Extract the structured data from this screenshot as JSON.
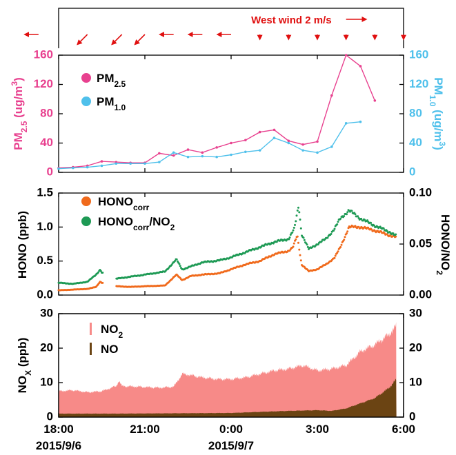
{
  "colors": {
    "pm25": "#e8418f",
    "pm10": "#4fc0eb",
    "hono": "#f06a1c",
    "ratio": "#1e9a55",
    "no2": "#f78a88",
    "no": "#6b4413",
    "wind": "#e01010",
    "axis": "#000000"
  },
  "x_ticks": [
    {
      "hour": 0,
      "time": "18:00",
      "date": "2015/9/6"
    },
    {
      "hour": 3,
      "time": "21:00",
      "date": ""
    },
    {
      "hour": 6,
      "time": "0:00",
      "date": "2015/9/7"
    },
    {
      "hour": 9,
      "time": "3:00",
      "date": ""
    },
    {
      "hour": 12,
      "time": "6:00",
      "date": ""
    }
  ],
  "chart_data": [
    {
      "type": "quiver",
      "panel": "wind",
      "annotation": {
        "text": "West wind 2 m/s",
        "reference_direction": "east"
      },
      "x_unit": "hours after 2015/9/6 18:00",
      "arrows": [
        {
          "x": -0.7,
          "direction": "west"
        },
        {
          "x": 1.0,
          "direction": "southwest"
        },
        {
          "x": 2.2,
          "direction": "southwest"
        },
        {
          "x": 3.0,
          "direction": "southwest"
        },
        {
          "x": 4.0,
          "direction": "west"
        },
        {
          "x": 5.0,
          "direction": "west"
        },
        {
          "x": 6.0,
          "direction": "west"
        },
        {
          "x": 7.0,
          "direction": "south"
        },
        {
          "x": 8.0,
          "direction": "south"
        },
        {
          "x": 9.0,
          "direction": "south"
        },
        {
          "x": 10.0,
          "direction": "south"
        },
        {
          "x": 11.0,
          "direction": "south"
        },
        {
          "x": 12.0,
          "direction": "south"
        }
      ]
    },
    {
      "type": "line",
      "panel": "pm",
      "x_unit": "hours after 2015/9/6 18:00",
      "xlim": [
        0,
        12
      ],
      "ylabel_left": {
        "main": "PM",
        "sub": "2.5",
        "rest": " (ug/m",
        "sup": "3",
        "close": ")"
      },
      "ylabel_right": {
        "main": "PM",
        "sub": "1.0",
        "rest": " (ug/m",
        "sup": "3",
        "close": ")"
      },
      "ylim": [
        0,
        160
      ],
      "yticks": [
        0,
        40,
        80,
        120,
        160
      ],
      "legend": [
        {
          "main": "PM",
          "sub": "2.5"
        },
        {
          "main": "PM",
          "sub": "1.0"
        }
      ],
      "x": [
        0,
        0.5,
        1,
        1.5,
        2,
        2.5,
        3,
        3.5,
        4,
        4.5,
        5,
        5.5,
        6,
        6.5,
        7,
        7.5,
        8,
        8.5,
        9,
        9.5,
        10,
        10.5,
        11,
        11.5
      ],
      "series": [
        {
          "key": "pm25",
          "values": [
            6,
            7,
            9,
            15,
            14,
            13,
            13,
            26,
            23,
            31,
            27,
            34,
            40,
            44,
            55,
            58,
            43,
            38,
            42,
            105,
            160,
            145,
            98,
            null
          ]
        },
        {
          "key": "pm10",
          "values": [
            5,
            6,
            7,
            9,
            12,
            12,
            12,
            14,
            27,
            21,
            22,
            21,
            24,
            28,
            30,
            47,
            40,
            30,
            27,
            35,
            67,
            69,
            null,
            null
          ]
        }
      ]
    },
    {
      "type": "scatter",
      "panel": "hono",
      "x_unit": "hours after 2015/9/6 18:00",
      "xlim": [
        0,
        12
      ],
      "ylabel_left": {
        "main": "HONO (ppb)"
      },
      "ylabel_right": {
        "main": "HONO/NO",
        "sub": "2"
      },
      "ylim_left": [
        0,
        1.5
      ],
      "yticks_left": [
        "0.0",
        "0.5",
        "1.0",
        "1.5"
      ],
      "ylim_right": [
        0,
        0.1
      ],
      "yticks_right": [
        "0.00",
        "0.05",
        "0.10"
      ],
      "legend": [
        {
          "main": "HONO",
          "sub": "corr"
        },
        {
          "main": "HONO",
          "sub": "corr",
          "rest": "/NO",
          "sub2": "2"
        }
      ],
      "gaps": [
        [
          1.55,
          2.0
        ]
      ],
      "series": [
        {
          "key": "hono",
          "axis": "left",
          "knots": [
            [
              0,
              0.07
            ],
            [
              0.5,
              0.08
            ],
            [
              1.0,
              0.09
            ],
            [
              1.3,
              0.12
            ],
            [
              1.45,
              0.2
            ],
            [
              1.5,
              0.18
            ],
            [
              2.0,
              0.13
            ],
            [
              2.5,
              0.12
            ],
            [
              3.0,
              0.13
            ],
            [
              3.7,
              0.14
            ],
            [
              4.1,
              0.3
            ],
            [
              4.3,
              0.22
            ],
            [
              4.6,
              0.28
            ],
            [
              5.0,
              0.3
            ],
            [
              5.6,
              0.32
            ],
            [
              6.0,
              0.38
            ],
            [
              6.5,
              0.45
            ],
            [
              7.0,
              0.5
            ],
            [
              7.5,
              0.6
            ],
            [
              8.0,
              0.65
            ],
            [
              8.15,
              0.7
            ],
            [
              8.3,
              0.88
            ],
            [
              8.45,
              0.45
            ],
            [
              8.7,
              0.35
            ],
            [
              9.0,
              0.38
            ],
            [
              9.3,
              0.45
            ],
            [
              9.6,
              0.55
            ],
            [
              9.8,
              0.7
            ],
            [
              10.1,
              1.0
            ],
            [
              10.5,
              1.0
            ],
            [
              11.0,
              0.95
            ],
            [
              11.5,
              0.88
            ],
            [
              11.75,
              0.85
            ]
          ]
        },
        {
          "key": "ratio",
          "axis": "right",
          "knots": [
            [
              0,
              0.012
            ],
            [
              0.5,
              0.011
            ],
            [
              1.0,
              0.013
            ],
            [
              1.3,
              0.02
            ],
            [
              1.45,
              0.025
            ],
            [
              1.5,
              0.022
            ],
            [
              2.0,
              0.016
            ],
            [
              2.5,
              0.018
            ],
            [
              3.0,
              0.02
            ],
            [
              3.7,
              0.023
            ],
            [
              4.1,
              0.035
            ],
            [
              4.3,
              0.025
            ],
            [
              4.6,
              0.028
            ],
            [
              5.0,
              0.032
            ],
            [
              5.6,
              0.034
            ],
            [
              6.0,
              0.037
            ],
            [
              6.5,
              0.042
            ],
            [
              7.0,
              0.047
            ],
            [
              7.5,
              0.052
            ],
            [
              8.0,
              0.055
            ],
            [
              8.2,
              0.065
            ],
            [
              8.35,
              0.088
            ],
            [
              8.45,
              0.06
            ],
            [
              8.7,
              0.045
            ],
            [
              9.0,
              0.05
            ],
            [
              9.3,
              0.055
            ],
            [
              9.6,
              0.065
            ],
            [
              9.8,
              0.075
            ],
            [
              10.1,
              0.083
            ],
            [
              10.5,
              0.075
            ],
            [
              11.0,
              0.068
            ],
            [
              11.5,
              0.062
            ],
            [
              11.75,
              0.058
            ]
          ]
        }
      ]
    },
    {
      "type": "area",
      "panel": "nox",
      "x_unit": "hours after 2015/9/6 18:00",
      "xlim": [
        0,
        12
      ],
      "ylabel": {
        "main": "NO",
        "sub": "X",
        "rest": " (ppb)"
      },
      "ylim": [
        0,
        30
      ],
      "yticks": [
        0,
        10,
        20,
        30
      ],
      "legend": [
        {
          "main": "NO",
          "sub": "2"
        },
        {
          "main": "NO"
        }
      ],
      "series": [
        {
          "key": "no2",
          "knots": [
            [
              0,
              7.5
            ],
            [
              0.5,
              7.8
            ],
            [
              1.0,
              7.2
            ],
            [
              1.5,
              7.5
            ],
            [
              2.0,
              9.0
            ],
            [
              2.1,
              10.5
            ],
            [
              2.2,
              9.0
            ],
            [
              2.8,
              8.8
            ],
            [
              3.5,
              8.5
            ],
            [
              4.0,
              8.8
            ],
            [
              4.3,
              12.5
            ],
            [
              4.5,
              12.3
            ],
            [
              5.0,
              11.5
            ],
            [
              5.5,
              11.0
            ],
            [
              6.0,
              11.0
            ],
            [
              6.5,
              11.5
            ],
            [
              7.0,
              12.5
            ],
            [
              7.5,
              13.5
            ],
            [
              8.0,
              14.0
            ],
            [
              8.5,
              15.0
            ],
            [
              9.0,
              13.5
            ],
            [
              9.5,
              14.0
            ],
            [
              10.0,
              15.0
            ],
            [
              10.5,
              19.0
            ],
            [
              11.0,
              21.0
            ],
            [
              11.5,
              24.0
            ],
            [
              11.75,
              26.5
            ]
          ]
        },
        {
          "key": "no",
          "knots": [
            [
              0,
              1.0
            ],
            [
              2.0,
              1.0
            ],
            [
              4.0,
              1.1
            ],
            [
              6.0,
              1.2
            ],
            [
              8.0,
              1.8
            ],
            [
              9.0,
              2.0
            ],
            [
              9.5,
              1.8
            ],
            [
              10.0,
              2.5
            ],
            [
              10.5,
              4.0
            ],
            [
              11.0,
              5.5
            ],
            [
              11.5,
              8.5
            ],
            [
              11.75,
              11.0
            ]
          ]
        }
      ]
    }
  ]
}
